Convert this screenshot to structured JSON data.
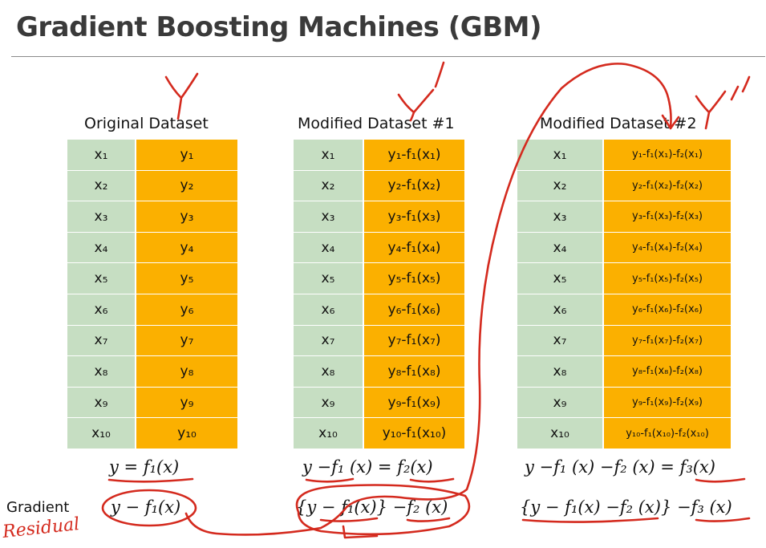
{
  "title": "Gradient Boosting Machines (GBM)",
  "tables": [
    {
      "caption": "Original Dataset",
      "x": [
        "x₁",
        "x₂",
        "x₃",
        "x₄",
        "x₅",
        "x₆",
        "x₇",
        "x₈",
        "x₉",
        "x₁₀"
      ],
      "y": [
        "y₁",
        "y₂",
        "y₃",
        "y₄",
        "y₅",
        "y₆",
        "y₇",
        "y₈",
        "y₉",
        "y₁₀"
      ]
    },
    {
      "caption": "Modified Dataset #1",
      "x": [
        "x₁",
        "x₂",
        "x₃",
        "x₄",
        "x₅",
        "x₆",
        "x₇",
        "x₈",
        "x₉",
        "x₁₀"
      ],
      "y": [
        "y₁-f₁(x₁)",
        "y₂-f₁(x₂)",
        "y₃-f₁(x₃)",
        "y₄-f₁(x₄)",
        "y₅-f₁(x₅)",
        "y₆-f₁(x₆)",
        "y₇-f₁(x₇)",
        "y₈-f₁(x₈)",
        "y₉-f₁(x₉)",
        "y₁₀-f₁(x₁₀)"
      ]
    },
    {
      "caption": "Modified Dataset #2",
      "x": [
        "x₁",
        "x₂",
        "x₃",
        "x₄",
        "x₅",
        "x₆",
        "x₇",
        "x₈",
        "x₉",
        "x₁₀"
      ],
      "y": [
        "y₁-f₁(x₁)-f₂(x₁)",
        "y₂-f₁(x₂)-f₂(x₂)",
        "y₃-f₁(x₃)-f₂(x₃)",
        "y₄-f₁(x₄)-f₂(x₄)",
        "y₅-f₁(x₅)-f₂(x₅)",
        "y₆-f₁(x₆)-f₂(x₆)",
        "y₇-f₁(x₇)-f₂(x₇)",
        "y₈-f₁(x₈)-f₂(x₈)",
        "y₉-f₁(x₉)-f₂(x₉)",
        "y₁₀-f₁(x₁₀)-f₂(x₁₀)"
      ]
    }
  ],
  "formulas": [
    "y = f₁(x)",
    "y −f₁ (x) = f₂(x)",
    "y −f₁ (x) −f₂ (x) = f₃(x)"
  ],
  "gradients": [
    "y − f₁(x)",
    "{y − f₁(x)} −f₂ (x)",
    "{y − f₁(x) −f₂ (x)} −f₃ (x)"
  ],
  "gradient_label": "Gradient",
  "handwriting": {
    "residual_note": "Residual",
    "y_marks": [
      "Y",
      "Y'",
      "Y''"
    ],
    "color": "#d42a1e"
  },
  "colors": {
    "x_column": "#c6dec2",
    "y_column": "#fbb000",
    "title_text": "#3a3a3a"
  }
}
